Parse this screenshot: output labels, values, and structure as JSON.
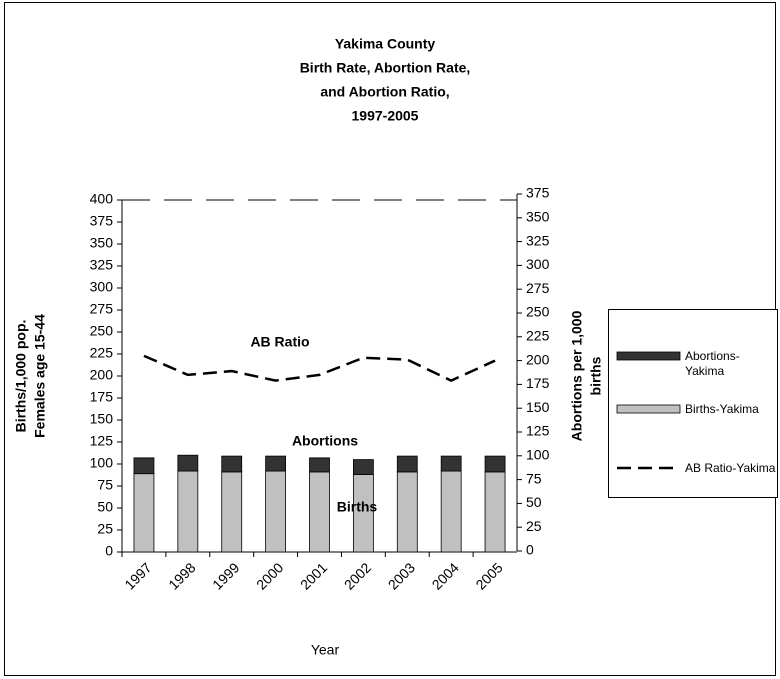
{
  "chart_data": {
    "type": "stacked-bar-line",
    "title": [
      "Yakima County",
      "Birth Rate, Abortion Rate,",
      "and Abortion Ratio,",
      "1997-2005"
    ],
    "xlabel": "Year",
    "ylabel": [
      "Births/1,000 pop.",
      "Females age 15-44"
    ],
    "y2label": [
      "Abortions per 1,000",
      "births"
    ],
    "categories": [
      "1997",
      "1998",
      "1999",
      "2000",
      "2001",
      "2002",
      "2003",
      "2004",
      "2005"
    ],
    "series": [
      {
        "name": "Abortions-Yakima",
        "color": "#333333",
        "kind": "bar",
        "values": [
          18,
          18,
          18,
          17,
          16,
          17,
          18,
          17,
          18
        ]
      },
      {
        "name": "Births-Yakima",
        "color": "#c0c0c0",
        "kind": "bar",
        "values": [
          89,
          92,
          91,
          92,
          91,
          88,
          91,
          92,
          91
        ]
      },
      {
        "name": "AB Ratio-Yakima",
        "color": "#000000",
        "kind": "line",
        "axis": "y2",
        "values": [
          205,
          185,
          189,
          179,
          185,
          203,
          201,
          179,
          200
        ]
      }
    ],
    "annotations": [
      "AB Ratio",
      "Abortions",
      "Births"
    ],
    "ylim": [
      0,
      400
    ],
    "yticks": [
      0,
      25,
      50,
      75,
      100,
      125,
      150,
      175,
      200,
      225,
      250,
      275,
      300,
      325,
      350,
      375,
      400
    ],
    "y2lim": [
      0,
      375
    ],
    "y2ticks": [
      0,
      25,
      50,
      75,
      100,
      125,
      150,
      175,
      200,
      225,
      250,
      275,
      300,
      325,
      350,
      375
    ]
  }
}
